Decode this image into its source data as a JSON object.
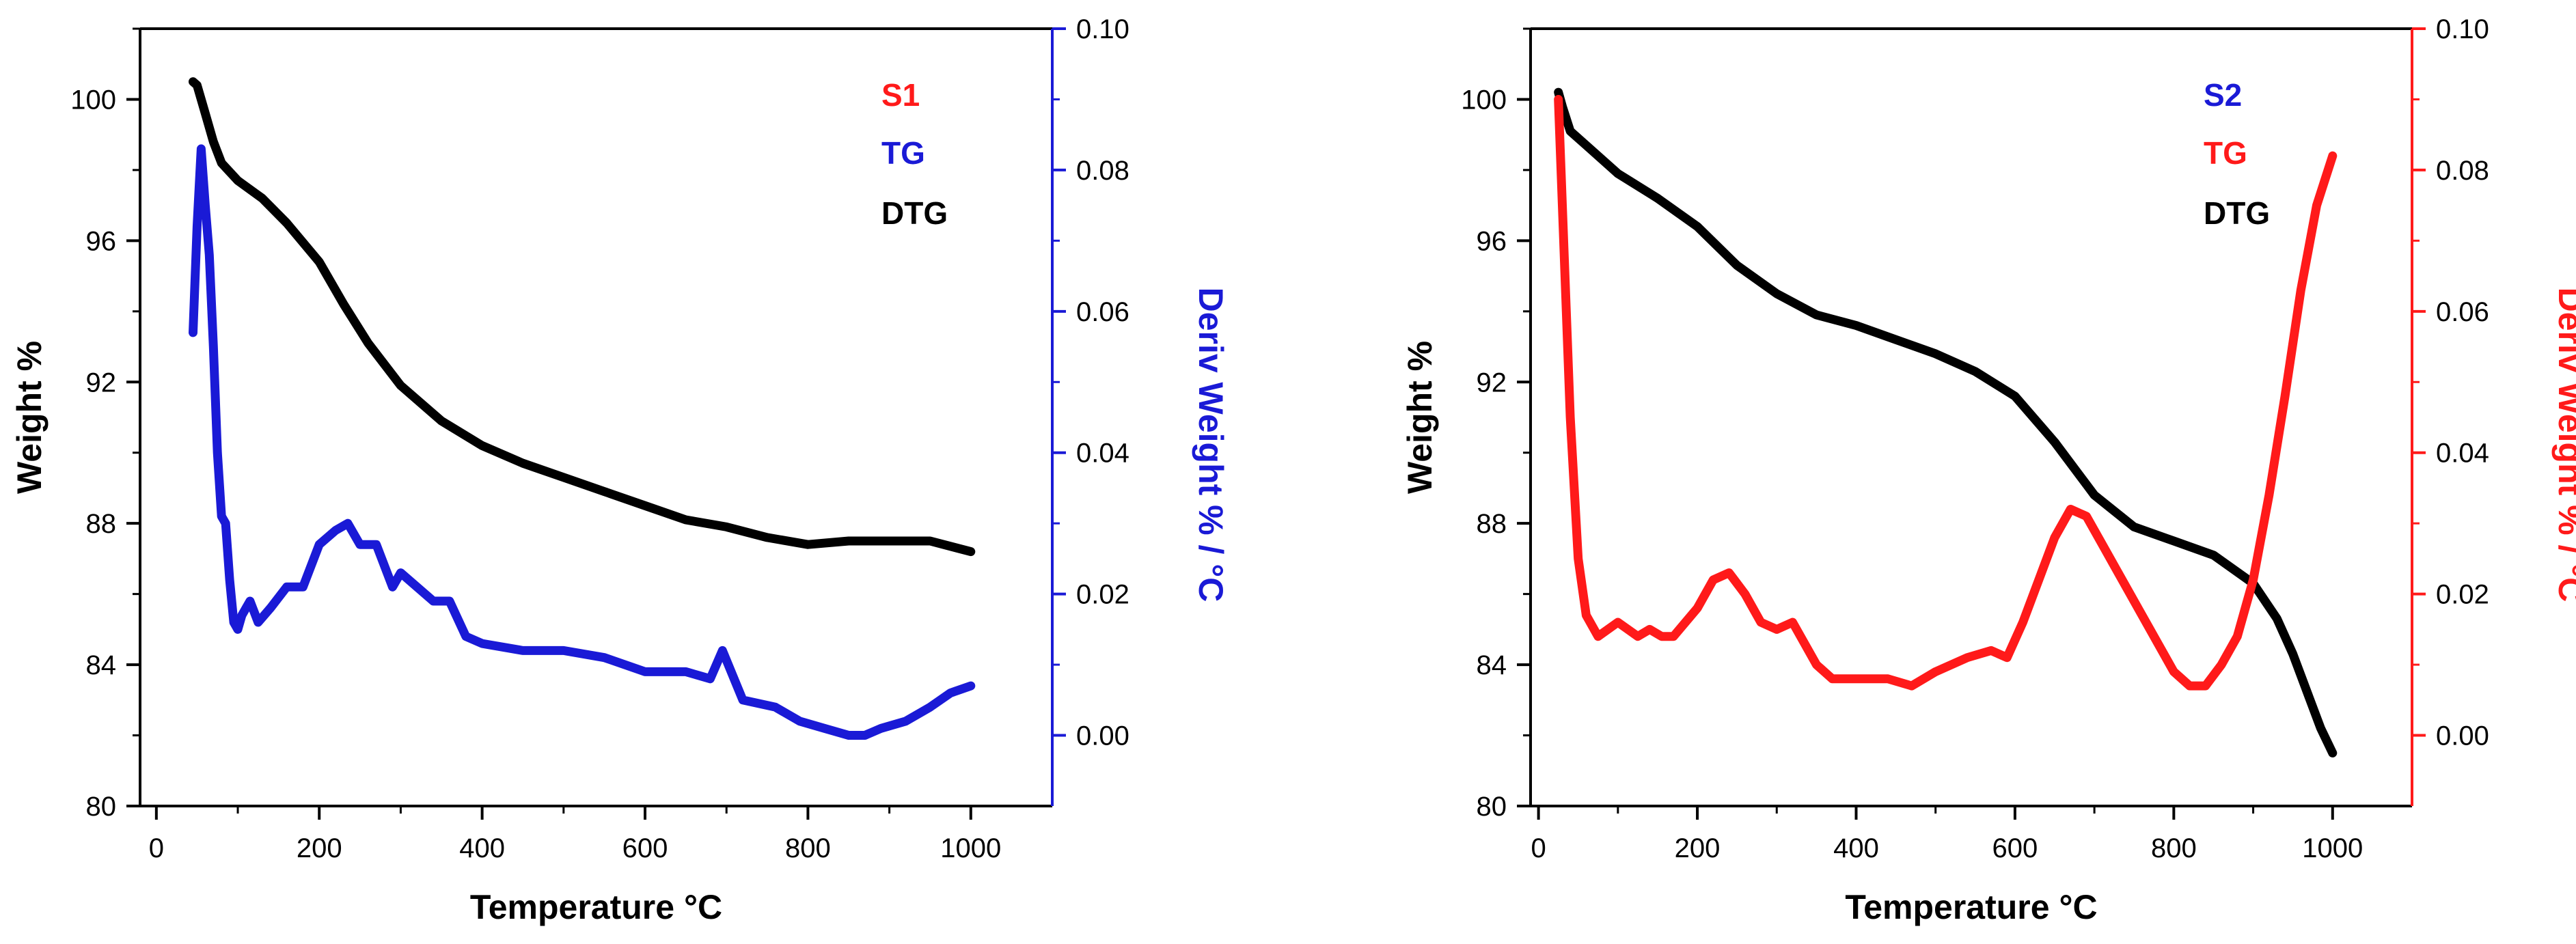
{
  "colors": {
    "black": "#000000",
    "blue": "#1a1ad6",
    "red": "#ff1a1a",
    "axis_blue": "#1a1ad6",
    "axis_red": "#ff1a1a"
  },
  "chart_data": [
    {
      "type": "line",
      "panel": "left",
      "legend": {
        "label": "S1",
        "label_color": "#ff1a1a",
        "entries": [
          {
            "text": "TG",
            "color": "#1a1ad6"
          },
          {
            "text": "DTG",
            "color": "#000000"
          }
        ],
        "placement": "top-right"
      },
      "xlabel": "Temperature °C",
      "ylabel_left": "Weight %",
      "ylabel_right": "Deriv Weight % / °C",
      "xlim": [
        -20,
        1100
      ],
      "ylim_left": [
        80,
        102
      ],
      "ylim_right": [
        -0.01,
        0.1
      ],
      "xticks": [
        "0",
        "200",
        "400",
        "600",
        "800",
        "1000"
      ],
      "yticks_left": [
        "80",
        "84",
        "88",
        "92",
        "96",
        "100"
      ],
      "yticks_right": [
        "0.00",
        "0.02",
        "0.04",
        "0.06",
        "0.08",
        "0.10"
      ],
      "series": [
        {
          "name": "weight",
          "axis": "left",
          "color": "#000000",
          "x": [
            45,
            50,
            60,
            70,
            80,
            100,
            130,
            160,
            200,
            230,
            260,
            300,
            350,
            400,
            450,
            500,
            550,
            600,
            650,
            700,
            750,
            800,
            850,
            900,
            950,
            1000
          ],
          "y": [
            100.5,
            100.4,
            99.6,
            98.8,
            98.2,
            97.7,
            97.2,
            96.5,
            95.4,
            94.2,
            93.1,
            91.9,
            90.9,
            90.2,
            89.7,
            89.3,
            88.9,
            88.5,
            88.1,
            87.9,
            87.6,
            87.4,
            87.5,
            87.5,
            87.5,
            87.2
          ]
        },
        {
          "name": "derivative",
          "axis": "right",
          "color": "#1a1ad6",
          "x": [
            45,
            50,
            55,
            60,
            65,
            70,
            75,
            80,
            85,
            90,
            95,
            100,
            105,
            110,
            115,
            125,
            140,
            160,
            180,
            200,
            220,
            235,
            250,
            270,
            290,
            300,
            320,
            340,
            360,
            380,
            400,
            450,
            500,
            550,
            600,
            650,
            680,
            695,
            720,
            760,
            790,
            820,
            850,
            870,
            890,
            920,
            950,
            975,
            1000
          ],
          "y": [
            0.057,
            0.072,
            0.083,
            0.075,
            0.068,
            0.055,
            0.04,
            0.031,
            0.03,
            0.022,
            0.016,
            0.015,
            0.017,
            0.018,
            0.019,
            0.016,
            0.018,
            0.021,
            0.021,
            0.027,
            0.029,
            0.03,
            0.027,
            0.027,
            0.021,
            0.023,
            0.021,
            0.019,
            0.019,
            0.014,
            0.013,
            0.012,
            0.012,
            0.011,
            0.009,
            0.009,
            0.008,
            0.012,
            0.005,
            0.004,
            0.002,
            0.001,
            0.0,
            0.0,
            0.001,
            0.002,
            0.004,
            0.006,
            0.007
          ]
        }
      ]
    },
    {
      "type": "line",
      "panel": "right",
      "legend": {
        "label": "S2",
        "label_color": "#1a1ad6",
        "entries": [
          {
            "text": "TG",
            "color": "#ff1a1a"
          },
          {
            "text": "DTG",
            "color": "#000000"
          }
        ],
        "placement": "top-right"
      },
      "xlabel": "Temperature °C",
      "ylabel_left": "Weight %",
      "ylabel_right": "Deriv Weight % / °C",
      "xlim": [
        -10,
        1100
      ],
      "ylim_left": [
        80,
        102
      ],
      "ylim_right": [
        -0.01,
        0.1
      ],
      "xticks": [
        "0",
        "200",
        "400",
        "600",
        "800",
        "1000"
      ],
      "yticks_left": [
        "80",
        "84",
        "88",
        "92",
        "96",
        "100"
      ],
      "yticks_right": [
        "0.00",
        "0.02",
        "0.04",
        "0.06",
        "0.08",
        "0.10"
      ],
      "series": [
        {
          "name": "weight",
          "axis": "left",
          "color": "#000000",
          "x": [
            25,
            30,
            40,
            60,
            100,
            150,
            200,
            250,
            300,
            350,
            400,
            450,
            500,
            550,
            600,
            650,
            700,
            750,
            800,
            850,
            900,
            930,
            950,
            970,
            985,
            1000
          ],
          "y": [
            100.2,
            99.8,
            99.1,
            98.7,
            97.9,
            97.2,
            96.4,
            95.3,
            94.5,
            93.9,
            93.6,
            93.2,
            92.8,
            92.3,
            91.6,
            90.3,
            88.8,
            87.9,
            87.5,
            87.1,
            86.3,
            85.3,
            84.3,
            83.1,
            82.2,
            81.5
          ]
        },
        {
          "name": "derivative",
          "axis": "right",
          "color": "#ff1a1a",
          "x": [
            25,
            30,
            40,
            50,
            60,
            75,
            100,
            125,
            140,
            155,
            170,
            200,
            220,
            240,
            260,
            280,
            300,
            320,
            350,
            370,
            400,
            440,
            470,
            500,
            540,
            570,
            590,
            610,
            630,
            650,
            670,
            690,
            710,
            730,
            760,
            800,
            820,
            840,
            860,
            880,
            900,
            920,
            940,
            960,
            980,
            1000
          ],
          "y": [
            0.09,
            0.075,
            0.045,
            0.025,
            0.017,
            0.014,
            0.016,
            0.014,
            0.015,
            0.014,
            0.014,
            0.018,
            0.022,
            0.023,
            0.02,
            0.016,
            0.015,
            0.016,
            0.01,
            0.008,
            0.008,
            0.008,
            0.007,
            0.009,
            0.011,
            0.012,
            0.011,
            0.016,
            0.022,
            0.028,
            0.032,
            0.031,
            0.027,
            0.023,
            0.017,
            0.009,
            0.007,
            0.007,
            0.01,
            0.014,
            0.022,
            0.034,
            0.048,
            0.063,
            0.075,
            0.082
          ]
        }
      ]
    }
  ]
}
